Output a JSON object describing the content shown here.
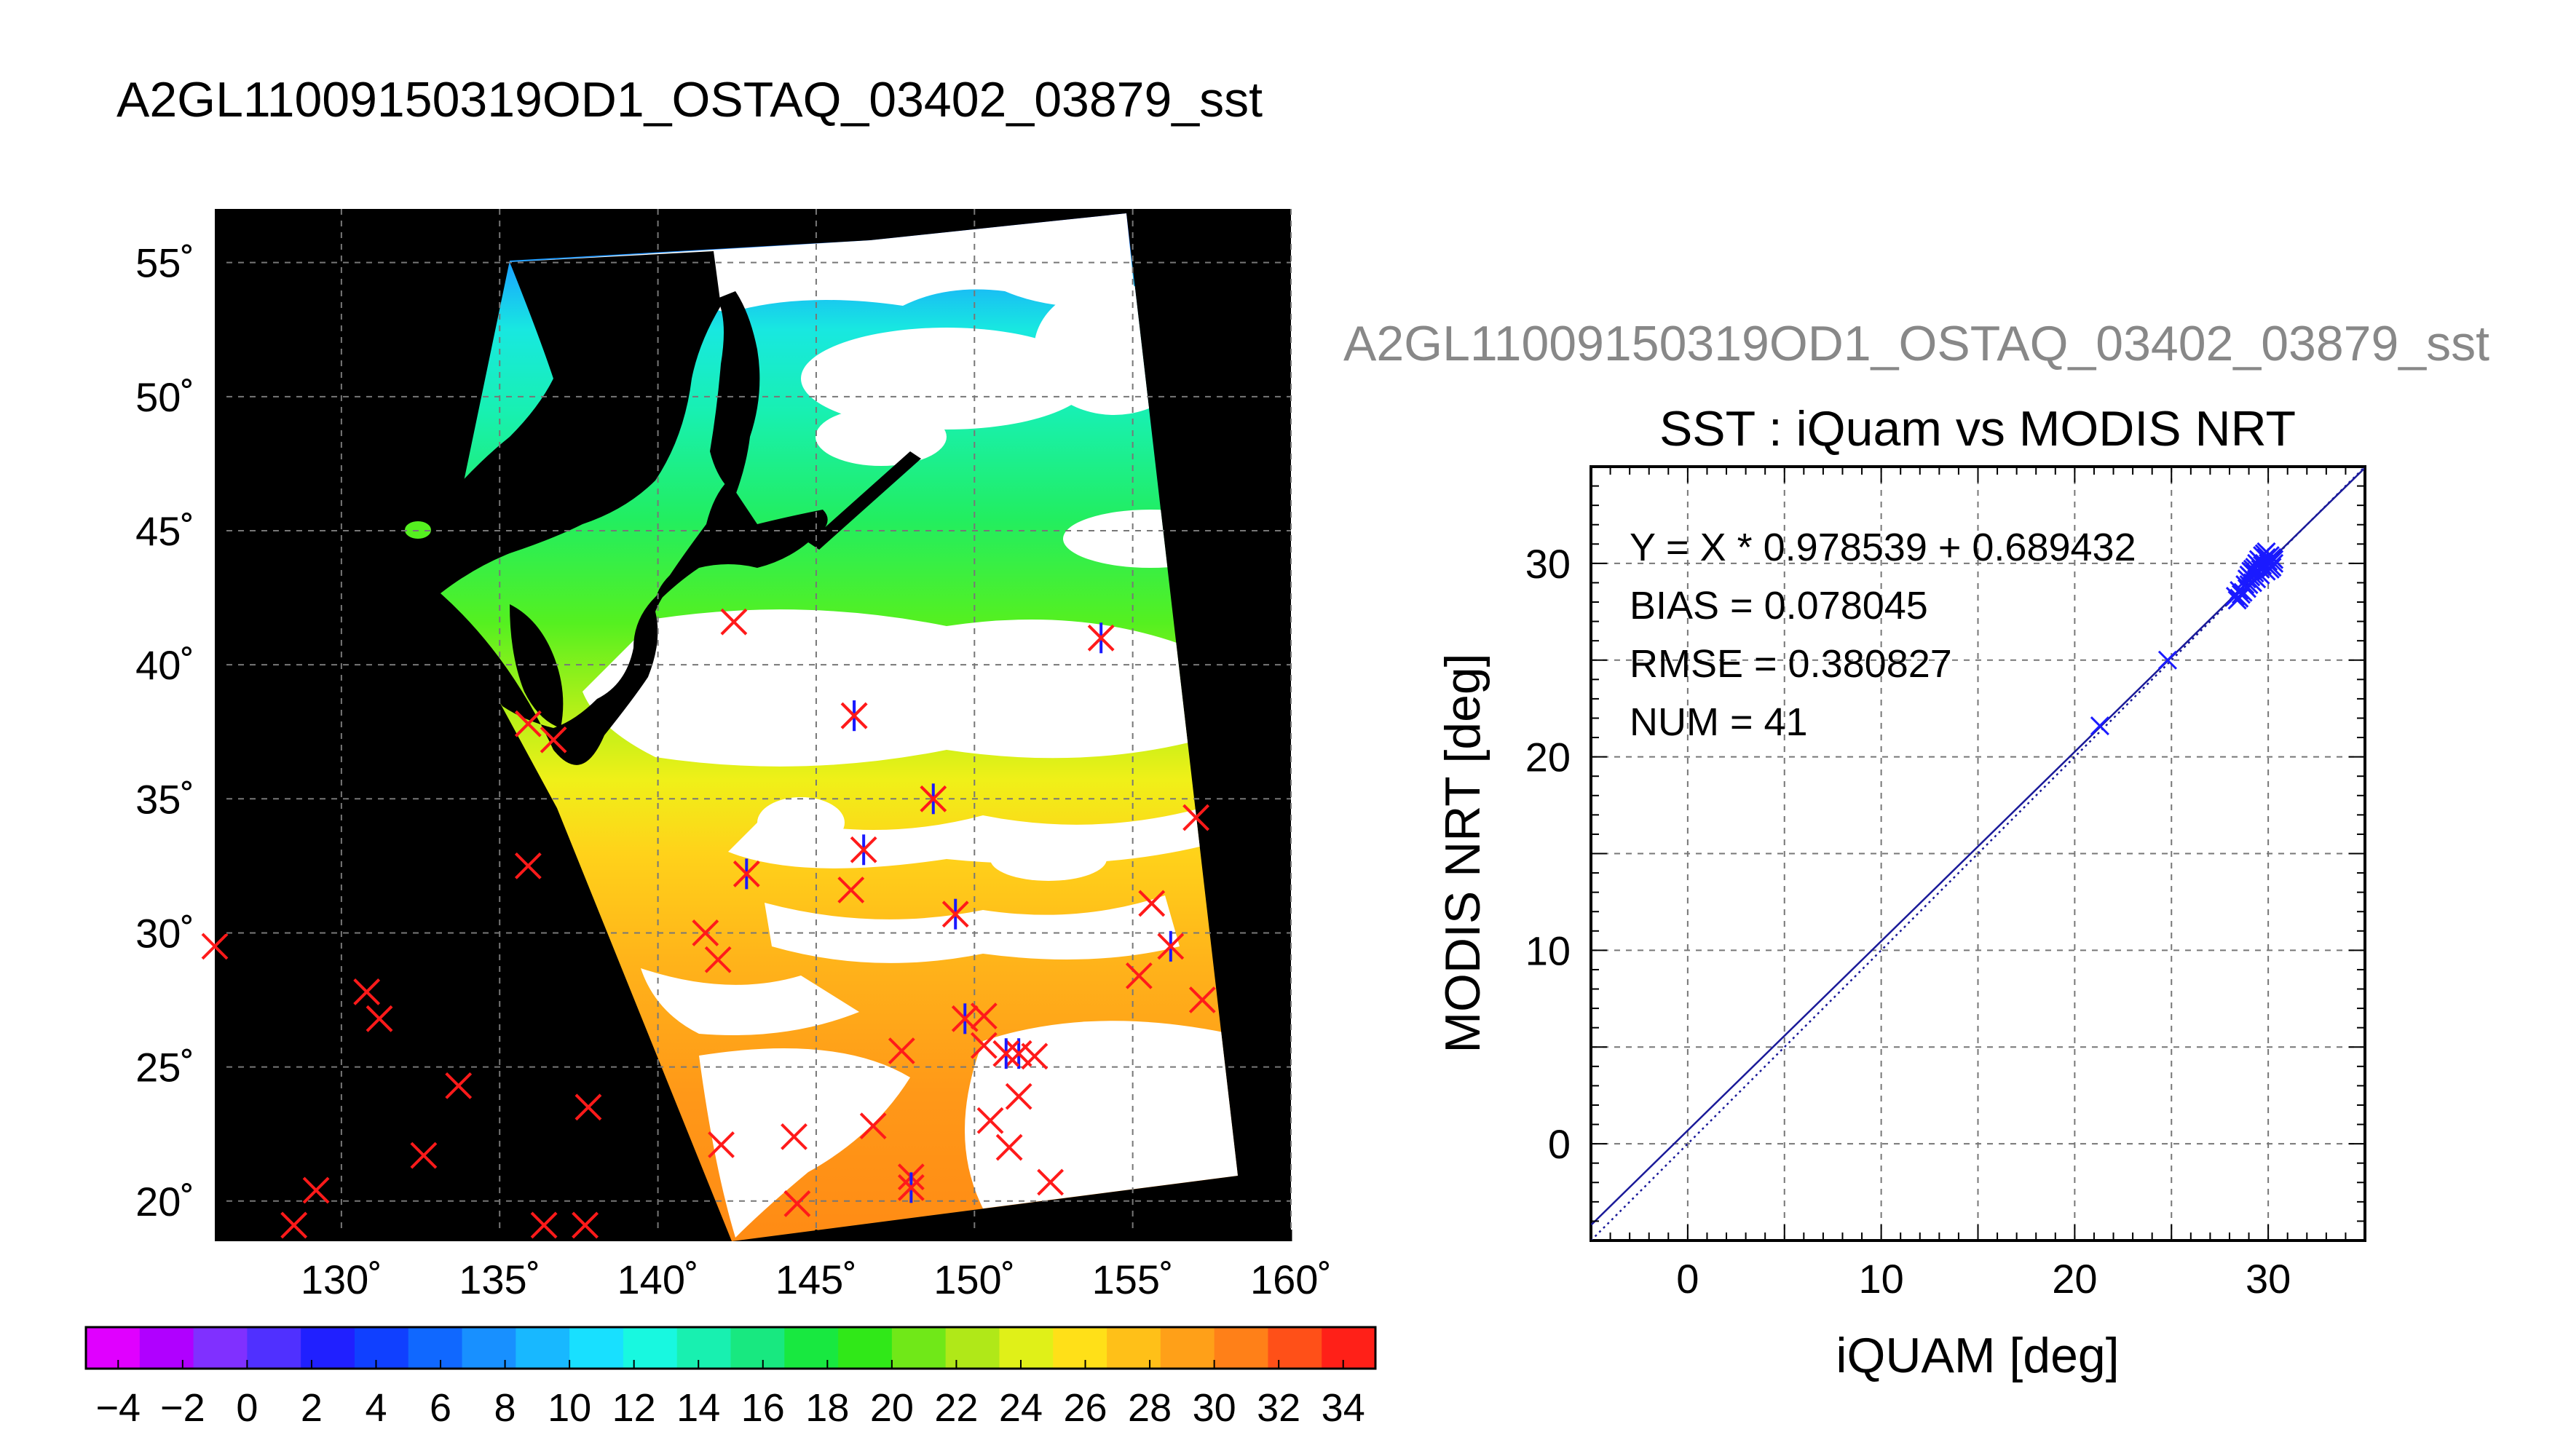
{
  "page": {
    "title": "A2GL11009150319OD1_OSTAQ_03402_03879_sst",
    "subtitle": "A2GL11009150319OD1_OSTAQ_03402_03879_sst"
  },
  "colors": {
    "land": "#000000",
    "cloud": "#ffffff",
    "grid": "#777777",
    "red_marker": "#ff1a1a",
    "blue_marker": "#1a1aff",
    "fit_line": "#1a1a99",
    "gray_title": "#888888"
  },
  "chart_data": [
    {
      "type": "heatmap",
      "title": "",
      "xlabel": "",
      "ylabel": "",
      "x_ticks": [
        "130˚",
        "135˚",
        "140˚",
        "145˚",
        "150˚",
        "155˚",
        "160˚"
      ],
      "x_tick_values": [
        130,
        135,
        140,
        145,
        150,
        155,
        160
      ],
      "y_ticks": [
        "20˚",
        "25˚",
        "30˚",
        "35˚",
        "40˚",
        "45˚",
        "50˚",
        "55˚"
      ],
      "y_tick_values": [
        20,
        25,
        30,
        35,
        40,
        45,
        50,
        55
      ],
      "xlim": [
        126,
        160
      ],
      "ylim": [
        18.5,
        57
      ],
      "grid": true,
      "red_markers": [
        [
          126,
          29.5
        ],
        [
          128.5,
          19.1
        ],
        [
          129.2,
          20.4
        ],
        [
          130.8,
          27.8
        ],
        [
          131.2,
          26.8
        ],
        [
          132.6,
          21.7
        ],
        [
          133.7,
          24.3
        ],
        [
          135.9,
          37.8
        ],
        [
          135.9,
          32.5
        ],
        [
          136.4,
          19.1
        ],
        [
          137.7,
          19.1
        ],
        [
          137.8,
          23.5
        ],
        [
          136.7,
          37.2
        ],
        [
          141.5,
          30.0
        ],
        [
          141.9,
          29.0
        ],
        [
          142.0,
          22.1
        ],
        [
          144.3,
          22.4
        ],
        [
          144.4,
          19.9
        ],
        [
          142.4,
          41.6
        ],
        [
          146.1,
          31.6
        ],
        [
          147.7,
          25.6
        ],
        [
          148.0,
          20.9
        ],
        [
          150.3,
          26.9
        ],
        [
          150.3,
          25.8
        ],
        [
          150.5,
          23.0
        ],
        [
          151.1,
          22.0
        ],
        [
          151.4,
          23.9
        ],
        [
          151.9,
          25.4
        ],
        [
          152.4,
          20.7
        ],
        [
          155.2,
          28.4
        ],
        [
          155.6,
          31.1
        ],
        [
          157.0,
          34.3
        ],
        [
          157.2,
          27.5
        ],
        [
          146.8,
          22.8
        ]
      ],
      "blue_markers": [
        [
          142.8,
          32.2
        ],
        [
          146.2,
          38.1
        ],
        [
          146.5,
          33.1
        ],
        [
          148.7,
          35.0
        ],
        [
          149.4,
          30.7
        ],
        [
          149.7,
          26.8
        ],
        [
          151.4,
          25.5
        ],
        [
          154.0,
          41.0
        ],
        [
          156.2,
          29.5
        ],
        [
          148.0,
          20.5
        ],
        [
          151.0,
          25.5
        ],
        [
          146.2,
          38.1
        ]
      ],
      "colorbar": {
        "ticks": [
          "−4",
          "−2",
          "0",
          "2",
          "4",
          "6",
          "8",
          "10",
          "12",
          "14",
          "16",
          "18",
          "20",
          "22",
          "24",
          "26",
          "28",
          "30",
          "32",
          "34"
        ],
        "tick_values": [
          -4,
          -2,
          0,
          2,
          4,
          6,
          8,
          10,
          12,
          14,
          16,
          18,
          20,
          22,
          24,
          26,
          28,
          30,
          32,
          34
        ],
        "range": [
          -5,
          35
        ]
      }
    },
    {
      "type": "scatter",
      "title": "SST : iQuam vs MODIS NRT",
      "xlabel": "iQUAM [deg]",
      "ylabel": "MODIS NRT [deg]",
      "xlim": [
        -5,
        35
      ],
      "ylim": [
        -5,
        35
      ],
      "x_ticks": [
        "0",
        "10",
        "20",
        "30"
      ],
      "x_tick_values": [
        0,
        10,
        20,
        30
      ],
      "y_ticks": [
        "0",
        "10",
        "20",
        "30"
      ],
      "y_tick_values": [
        0,
        10,
        20,
        30
      ],
      "grid": true,
      "stats": [
        "Y = X * 0.978539 + 0.689432",
        "BIAS = 0.078045",
        "RMSE = 0.380827",
        "NUM = 41"
      ],
      "fit": {
        "slope": 0.978539,
        "intercept": 0.689432
      },
      "points": [
        [
          21.3,
          21.6
        ],
        [
          24.8,
          25.0
        ],
        [
          28.3,
          28.3
        ],
        [
          28.5,
          28.2
        ],
        [
          28.6,
          28.4
        ],
        [
          28.4,
          28.1
        ],
        [
          28.7,
          28.5
        ],
        [
          28.9,
          28.7
        ],
        [
          29.0,
          28.9
        ],
        [
          29.1,
          29.3
        ],
        [
          29.2,
          29.0
        ],
        [
          29.3,
          29.5
        ],
        [
          29.4,
          29.2
        ],
        [
          29.5,
          30.2
        ],
        [
          29.6,
          29.7
        ],
        [
          29.7,
          29.9
        ],
        [
          29.8,
          30.0
        ],
        [
          29.9,
          30.3
        ],
        [
          30.0,
          30.1
        ],
        [
          30.1,
          30.4
        ],
        [
          30.2,
          29.8
        ],
        [
          30.3,
          30.2
        ],
        [
          29.8,
          30.5
        ],
        [
          29.6,
          29.4
        ],
        [
          29.9,
          29.6
        ],
        [
          30.0,
          30.0
        ],
        [
          30.2,
          30.3
        ],
        [
          29.5,
          29.9
        ],
        [
          29.3,
          29.8
        ],
        [
          29.7,
          30.4
        ],
        [
          29.4,
          30.0
        ],
        [
          29.1,
          29.6
        ],
        [
          28.8,
          28.9
        ],
        [
          28.5,
          28.6
        ],
        [
          29.0,
          29.4
        ],
        [
          29.9,
          30.6
        ],
        [
          30.1,
          29.7
        ],
        [
          29.6,
          30.1
        ],
        [
          30.3,
          30.0
        ],
        [
          29.2,
          29.7
        ],
        [
          28.9,
          29.2
        ]
      ]
    }
  ]
}
